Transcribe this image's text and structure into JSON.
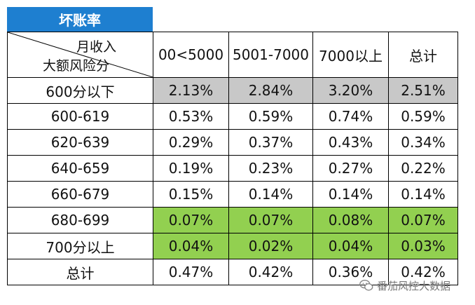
{
  "title": "坏账率",
  "corner": {
    "top_label": "月收入",
    "bottom_label": "大额风险分"
  },
  "columns": [
    "00<5000",
    "5001-7000",
    "7000以上",
    "总计"
  ],
  "rows": [
    {
      "label": "600分以下",
      "values": [
        "2.13%",
        "2.84%",
        "3.20%",
        "2.51%"
      ],
      "highlight": "gray"
    },
    {
      "label": "600-619",
      "values": [
        "0.53%",
        "0.59%",
        "0.74%",
        "0.59%"
      ],
      "highlight": ""
    },
    {
      "label": "620-639",
      "values": [
        "0.29%",
        "0.37%",
        "0.43%",
        "0.34%"
      ],
      "highlight": ""
    },
    {
      "label": "640-659",
      "values": [
        "0.19%",
        "0.23%",
        "0.27%",
        "0.22%"
      ],
      "highlight": ""
    },
    {
      "label": "660-679",
      "values": [
        "0.15%",
        "0.14%",
        "0.14%",
        "0.14%"
      ],
      "highlight": ""
    },
    {
      "label": "680-699",
      "values": [
        "0.07%",
        "0.07%",
        "0.08%",
        "0.07%"
      ],
      "highlight": "green"
    },
    {
      "label": "700分以上",
      "values": [
        "0.04%",
        "0.02%",
        "0.04%",
        "0.03%"
      ],
      "highlight": "green"
    },
    {
      "label": "总计",
      "values": [
        "0.47%",
        "0.42%",
        "0.36%",
        "0.42%"
      ],
      "highlight": ""
    }
  ],
  "colors": {
    "title_bg": "#1e7fd0",
    "gray_fill": "#c8c8c8",
    "green_fill": "#92d050"
  },
  "watermark": {
    "text": "番茄风控大数据",
    "icon": "wechat-icon"
  }
}
